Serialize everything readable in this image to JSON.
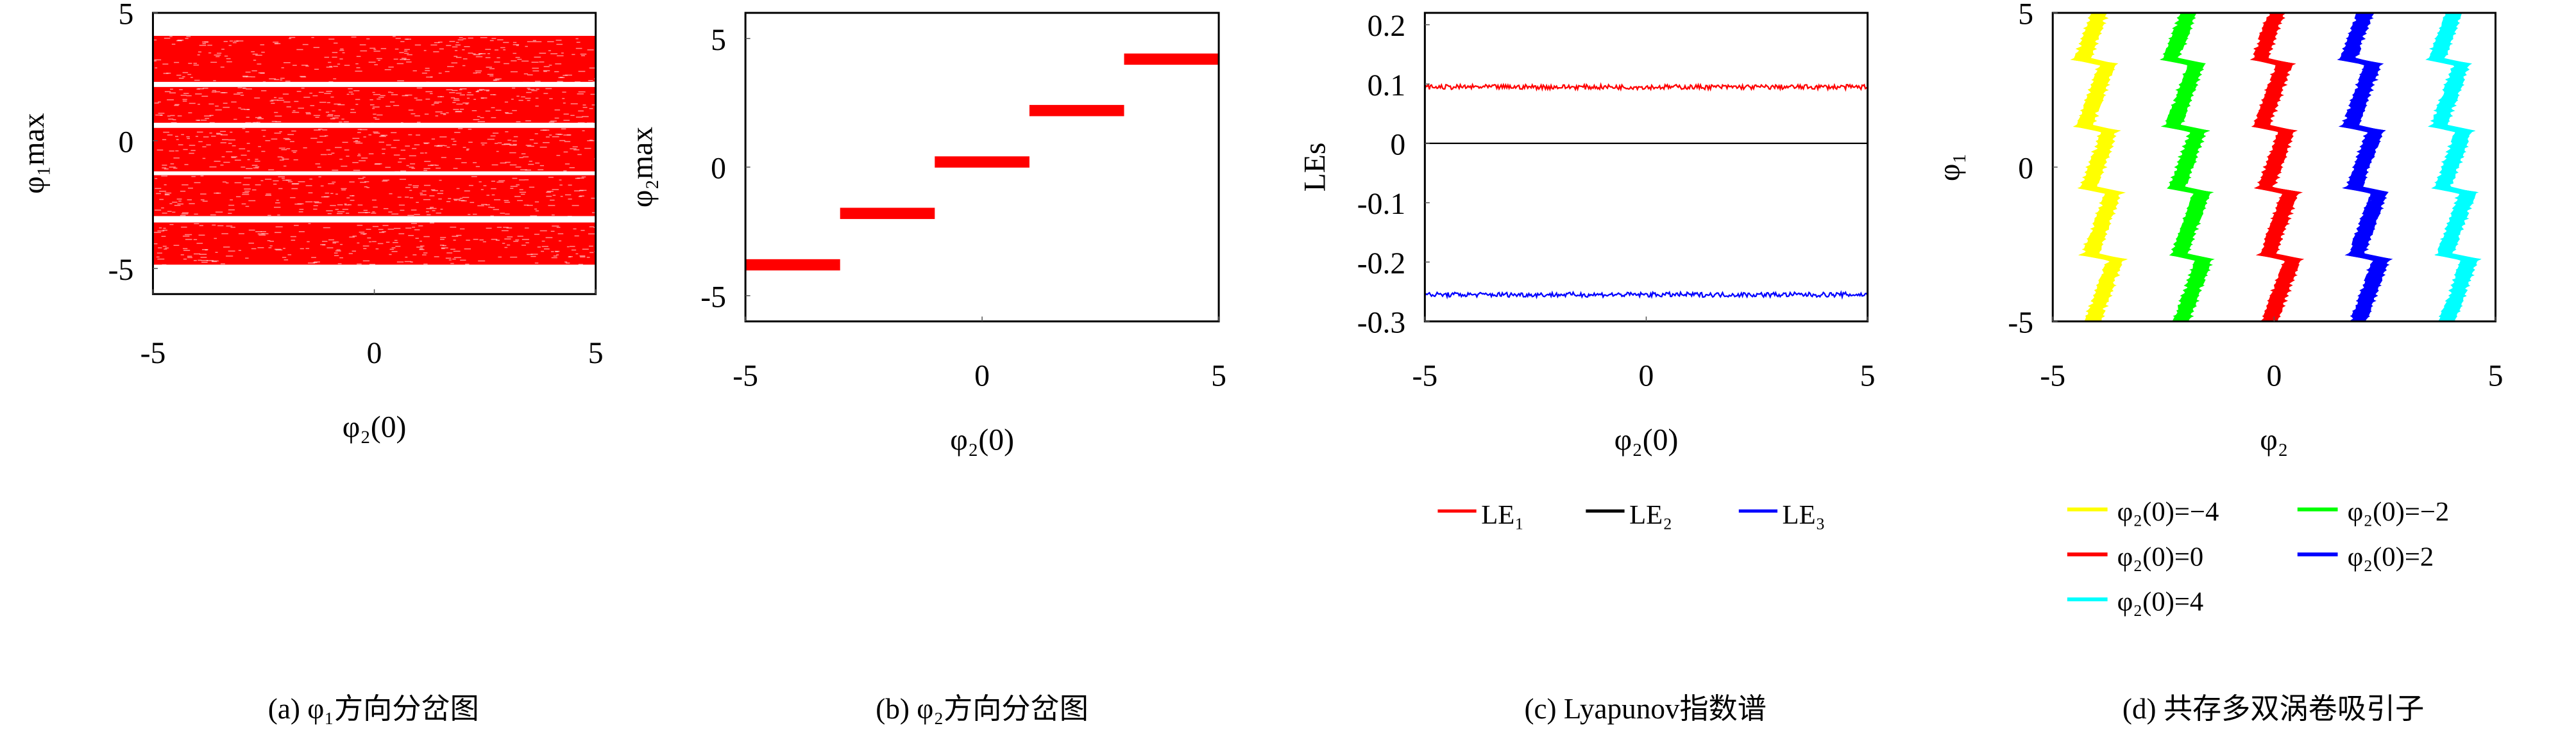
{
  "chart_data": [
    {
      "type": "scatter",
      "caption": "(a) φ₁方向分岔图",
      "xlabel": "φ₂(0)",
      "ylabel": "φ₁max",
      "xlim": [
        -5,
        5
      ],
      "ylim": [
        -6,
        5
      ],
      "xticks": [
        -5,
        0,
        5
      ],
      "yticks": [
        -5,
        0,
        5
      ],
      "color": "#ff0000",
      "bands": [
        [
          2.3,
          4.1
        ],
        [
          0.7,
          2.1
        ],
        [
          -1.2,
          0.5
        ],
        [
          -2.95,
          -1.35
        ],
        [
          -4.85,
          -3.2
        ]
      ]
    },
    {
      "type": "scatter",
      "caption": "(b) φ₂方向分岔图",
      "xlabel": "φ₂(0)",
      "ylabel": "φ₂max",
      "xlim": [
        -5,
        5
      ],
      "ylim": [
        -6,
        6
      ],
      "xticks": [
        -5,
        0,
        5
      ],
      "yticks": [
        -5,
        0,
        5
      ],
      "color": "#ff0000",
      "segments": [
        {
          "x": [
            -5,
            -3
          ],
          "y": -3.8
        },
        {
          "x": [
            -3,
            -1
          ],
          "y": -1.8
        },
        {
          "x": [
            -1,
            1
          ],
          "y": 0.2
        },
        {
          "x": [
            1,
            3
          ],
          "y": 2.2
        },
        {
          "x": [
            3,
            5
          ],
          "y": 4.2
        }
      ]
    },
    {
      "type": "line",
      "caption": "(c) Lyapunov指数谱",
      "xlabel": "φ₂(0)",
      "ylabel": "LEs",
      "xlim": [
        -5,
        5
      ],
      "ylim": [
        -0.3,
        0.22
      ],
      "xticks": [
        -5,
        0,
        5
      ],
      "yticks": [
        "0.2",
        "0.1",
        "0",
        "-0.1",
        "-0.2",
        "-0.3"
      ],
      "legend_position": "bottom",
      "series": [
        {
          "name": "LE₁",
          "mean": 0.095,
          "color": "#ff0000"
        },
        {
          "name": "LE₂",
          "mean": 0.0,
          "color": "#000000"
        },
        {
          "name": "LE₃",
          "mean": -0.255,
          "color": "#0000ff"
        }
      ]
    },
    {
      "type": "line",
      "caption": "(d) 共存多双涡卷吸引子",
      "xlabel": "φ₂",
      "ylabel": "φ₁",
      "xlim": [
        -5,
        5
      ],
      "ylim": [
        -5,
        5
      ],
      "xticks": [
        -5,
        0,
        5
      ],
      "yticks": [
        -5,
        0,
        5
      ],
      "legend_position": "bottom",
      "series": [
        {
          "name": "φ₂(0)=−4",
          "center": -4,
          "color": "#ffff00"
        },
        {
          "name": "φ₂(0)=−2",
          "center": -2,
          "color": "#00ff00"
        },
        {
          "name": "φ₂(0)=0",
          "center": 0,
          "color": "#ff0000"
        },
        {
          "name": "φ₂(0)=2",
          "center": 2,
          "color": "#0000ff"
        },
        {
          "name": "φ₂(0)=4",
          "center": 4,
          "color": "#00ffff"
        }
      ]
    }
  ]
}
